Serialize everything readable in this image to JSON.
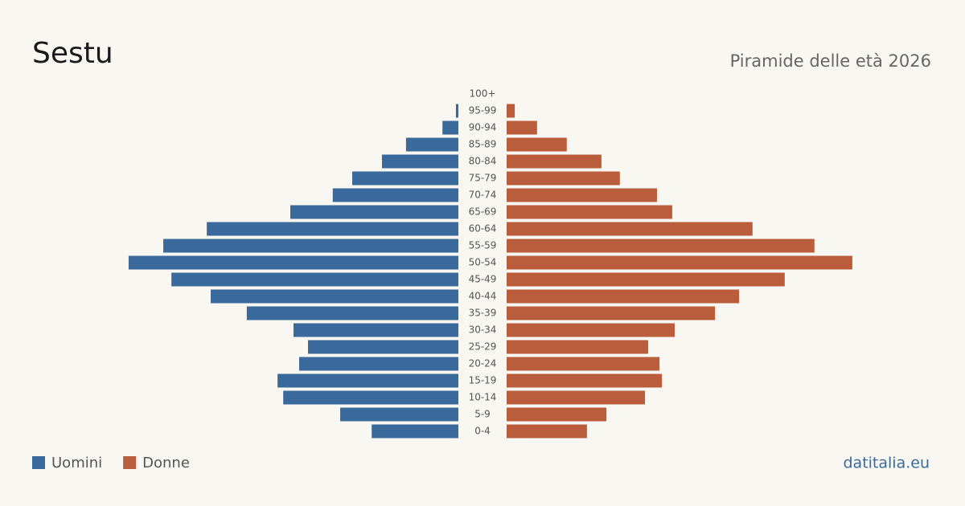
{
  "chart_data": {
    "type": "pyramid",
    "title": "Sestu",
    "subtitle": "Piramide delle età 2026",
    "source": "datitalia.eu",
    "categories": [
      "100+",
      "95-99",
      "90-94",
      "85-89",
      "80-84",
      "75-79",
      "70-74",
      "65-69",
      "60-64",
      "55-59",
      "50-54",
      "45-49",
      "40-44",
      "35-39",
      "30-34",
      "25-29",
      "20-24",
      "15-19",
      "10-14",
      "5-9",
      "0-4"
    ],
    "xlim": [
      0,
      1000
    ],
    "series": [
      {
        "name": "Uomini",
        "color": "#3a6a9c",
        "values": [
          0,
          7,
          45,
          148,
          216,
          300,
          355,
          475,
          711,
          834,
          932,
          811,
          700,
          598,
          466,
          425,
          450,
          511,
          495,
          334,
          245
        ]
      },
      {
        "name": "Donne",
        "color": "#b95d3c",
        "values": [
          0,
          23,
          86,
          170,
          268,
          320,
          425,
          468,
          695,
          870,
          977,
          786,
          657,
          589,
          475,
          400,
          432,
          439,
          391,
          282,
          227
        ]
      }
    ]
  }
}
